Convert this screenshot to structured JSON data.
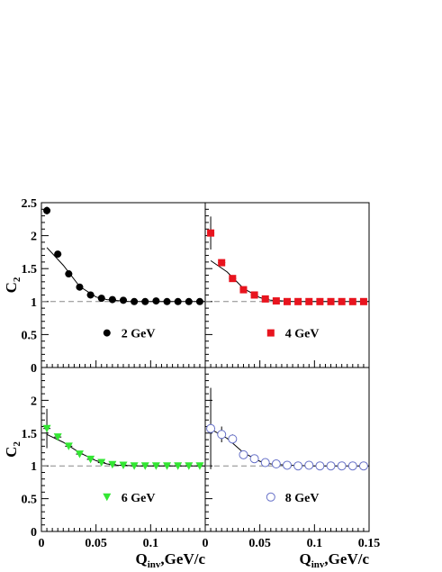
{
  "chart_data": [
    {
      "type": "scatter",
      "panel": "top-left",
      "xlim": [
        0,
        0.15
      ],
      "ylim": [
        0,
        2.5
      ],
      "ylabel": "C",
      "ylabel_sub": "2",
      "yticks": [
        "0",
        "0.5",
        "1",
        "1.5",
        "2",
        "2.5"
      ],
      "xticks": [],
      "reference_line": 1,
      "marker": "circle-filled",
      "color": "#000000",
      "legend": "2 GeV",
      "legend_position": "center",
      "points": [
        {
          "x": 0.005,
          "y": 2.38,
          "err": 0.06
        },
        {
          "x": 0.015,
          "y": 1.72,
          "err": 0.04
        },
        {
          "x": 0.025,
          "y": 1.42,
          "err": 0.03
        },
        {
          "x": 0.035,
          "y": 1.22,
          "err": 0.02
        },
        {
          "x": 0.045,
          "y": 1.1,
          "err": 0.02
        },
        {
          "x": 0.055,
          "y": 1.05,
          "err": 0.01
        },
        {
          "x": 0.065,
          "y": 1.03,
          "err": 0.01
        },
        {
          "x": 0.075,
          "y": 1.02,
          "err": 0.01
        },
        {
          "x": 0.085,
          "y": 1.0,
          "err": 0.01
        },
        {
          "x": 0.095,
          "y": 1.0,
          "err": 0.01
        },
        {
          "x": 0.105,
          "y": 1.01,
          "err": 0.01
        },
        {
          "x": 0.115,
          "y": 1.0,
          "err": 0.01
        },
        {
          "x": 0.125,
          "y": 1.0,
          "err": 0.01
        },
        {
          "x": 0.135,
          "y": 1.0,
          "err": 0.01
        },
        {
          "x": 0.145,
          "y": 1.0,
          "err": 0.01
        }
      ],
      "fit": {
        "x": [
          0.005,
          0.02,
          0.035,
          0.05,
          0.06,
          0.08,
          0.1,
          0.125,
          0.15
        ],
        "y": [
          1.82,
          1.55,
          1.23,
          1.07,
          1.03,
          1.0,
          1.0,
          1.0,
          1.0
        ]
      }
    },
    {
      "type": "scatter",
      "panel": "top-right",
      "xlim": [
        0,
        0.15
      ],
      "ylim": [
        0,
        2.5
      ],
      "xticks": [],
      "reference_line": 1,
      "marker": "square-filled",
      "color": "#e8141e",
      "legend": "4 GeV",
      "legend_position": "center-right",
      "points": [
        {
          "x": 0.005,
          "y": 2.04,
          "err": 0.25
        },
        {
          "x": 0.015,
          "y": 1.59,
          "err": 0.05
        },
        {
          "x": 0.025,
          "y": 1.35,
          "err": 0.03
        },
        {
          "x": 0.035,
          "y": 1.18,
          "err": 0.02
        },
        {
          "x": 0.045,
          "y": 1.1,
          "err": 0.02
        },
        {
          "x": 0.055,
          "y": 1.04,
          "err": 0.01
        },
        {
          "x": 0.065,
          "y": 1.01,
          "err": 0.01
        },
        {
          "x": 0.075,
          "y": 1.0,
          "err": 0.01
        },
        {
          "x": 0.085,
          "y": 1.0,
          "err": 0.01
        },
        {
          "x": 0.095,
          "y": 1.0,
          "err": 0.01
        },
        {
          "x": 0.105,
          "y": 1.0,
          "err": 0.01
        },
        {
          "x": 0.115,
          "y": 1.0,
          "err": 0.01
        },
        {
          "x": 0.125,
          "y": 1.0,
          "err": 0.01
        },
        {
          "x": 0.135,
          "y": 1.0,
          "err": 0.01
        },
        {
          "x": 0.145,
          "y": 1.0,
          "err": 0.01
        }
      ],
      "fit": {
        "x": [
          0.005,
          0.02,
          0.035,
          0.05,
          0.06,
          0.08,
          0.1,
          0.125,
          0.15
        ],
        "y": [
          1.62,
          1.45,
          1.2,
          1.06,
          1.02,
          1.0,
          1.0,
          1.0,
          1.0
        ]
      }
    },
    {
      "type": "scatter",
      "panel": "bottom-left",
      "xlim": [
        0,
        0.15
      ],
      "ylim": [
        0,
        2.5
      ],
      "ylabel": "C",
      "ylabel_sub": "2",
      "yticks": [
        "0",
        "0.5",
        "1",
        "1.5",
        "2",
        ""
      ],
      "xticks": [
        "0",
        "0.05",
        "0.1"
      ],
      "xlabel": "Q",
      "xlabel_sub": "inv",
      "xlabel_rest": ",GeV/c",
      "reference_line": 1,
      "marker": "triangle-down-filled",
      "color": "#33e633",
      "legend": "6 GeV",
      "legend_position": "center",
      "points": [
        {
          "x": 0.005,
          "y": 1.57,
          "err": 0.3
        },
        {
          "x": 0.015,
          "y": 1.44,
          "err": 0.05
        },
        {
          "x": 0.025,
          "y": 1.3,
          "err": 0.04
        },
        {
          "x": 0.035,
          "y": 1.18,
          "err": 0.03
        },
        {
          "x": 0.045,
          "y": 1.1,
          "err": 0.02
        },
        {
          "x": 0.055,
          "y": 1.05,
          "err": 0.01
        },
        {
          "x": 0.065,
          "y": 1.02,
          "err": 0.01
        },
        {
          "x": 0.075,
          "y": 1.01,
          "err": 0.01
        },
        {
          "x": 0.085,
          "y": 1.0,
          "err": 0.01
        },
        {
          "x": 0.095,
          "y": 1.0,
          "err": 0.01
        },
        {
          "x": 0.105,
          "y": 1.0,
          "err": 0.01
        },
        {
          "x": 0.115,
          "y": 1.0,
          "err": 0.01
        },
        {
          "x": 0.125,
          "y": 1.0,
          "err": 0.01
        },
        {
          "x": 0.135,
          "y": 1.0,
          "err": 0.01
        },
        {
          "x": 0.145,
          "y": 1.0,
          "err": 0.01
        }
      ],
      "fit": {
        "x": [
          0.005,
          0.02,
          0.035,
          0.05,
          0.06,
          0.07,
          0.09,
          0.12,
          0.15
        ],
        "y": [
          1.48,
          1.36,
          1.2,
          1.08,
          1.03,
          1.01,
          1.0,
          1.0,
          1.0
        ]
      }
    },
    {
      "type": "scatter",
      "panel": "bottom-right",
      "xlim": [
        0,
        0.15
      ],
      "ylim": [
        0,
        2.5
      ],
      "xticks": [
        "0",
        "0.05",
        "0.1",
        "0.15"
      ],
      "xlabel": "Q",
      "xlabel_sub": "inv",
      "xlabel_rest": ",GeV/c",
      "reference_line": 1,
      "marker": "circle-open",
      "color": "#6670c8",
      "legend": "8 GeV",
      "legend_position": "center-right",
      "points": [
        {
          "x": 0.005,
          "y": 1.57,
          "err": 0.62
        },
        {
          "x": 0.015,
          "y": 1.48,
          "err": 0.12
        },
        {
          "x": 0.025,
          "y": 1.41,
          "err": 0.07
        },
        {
          "x": 0.035,
          "y": 1.17,
          "err": 0.05
        },
        {
          "x": 0.045,
          "y": 1.11,
          "err": 0.03
        },
        {
          "x": 0.055,
          "y": 1.05,
          "err": 0.02
        },
        {
          "x": 0.065,
          "y": 1.03,
          "err": 0.02
        },
        {
          "x": 0.075,
          "y": 1.01,
          "err": 0.01
        },
        {
          "x": 0.085,
          "y": 1.0,
          "err": 0.01
        },
        {
          "x": 0.095,
          "y": 1.01,
          "err": 0.01
        },
        {
          "x": 0.105,
          "y": 1.0,
          "err": 0.01
        },
        {
          "x": 0.115,
          "y": 1.0,
          "err": 0.01
        },
        {
          "x": 0.125,
          "y": 1.0,
          "err": 0.01
        },
        {
          "x": 0.135,
          "y": 1.0,
          "err": 0.01
        },
        {
          "x": 0.145,
          "y": 1.0,
          "err": 0.01
        }
      ],
      "fit": {
        "x": [
          0.005,
          0.02,
          0.035,
          0.05,
          0.06,
          0.075,
          0.1,
          0.125,
          0.15
        ],
        "y": [
          1.56,
          1.42,
          1.2,
          1.07,
          1.03,
          1.01,
          1.0,
          1.0,
          1.0
        ]
      }
    }
  ]
}
